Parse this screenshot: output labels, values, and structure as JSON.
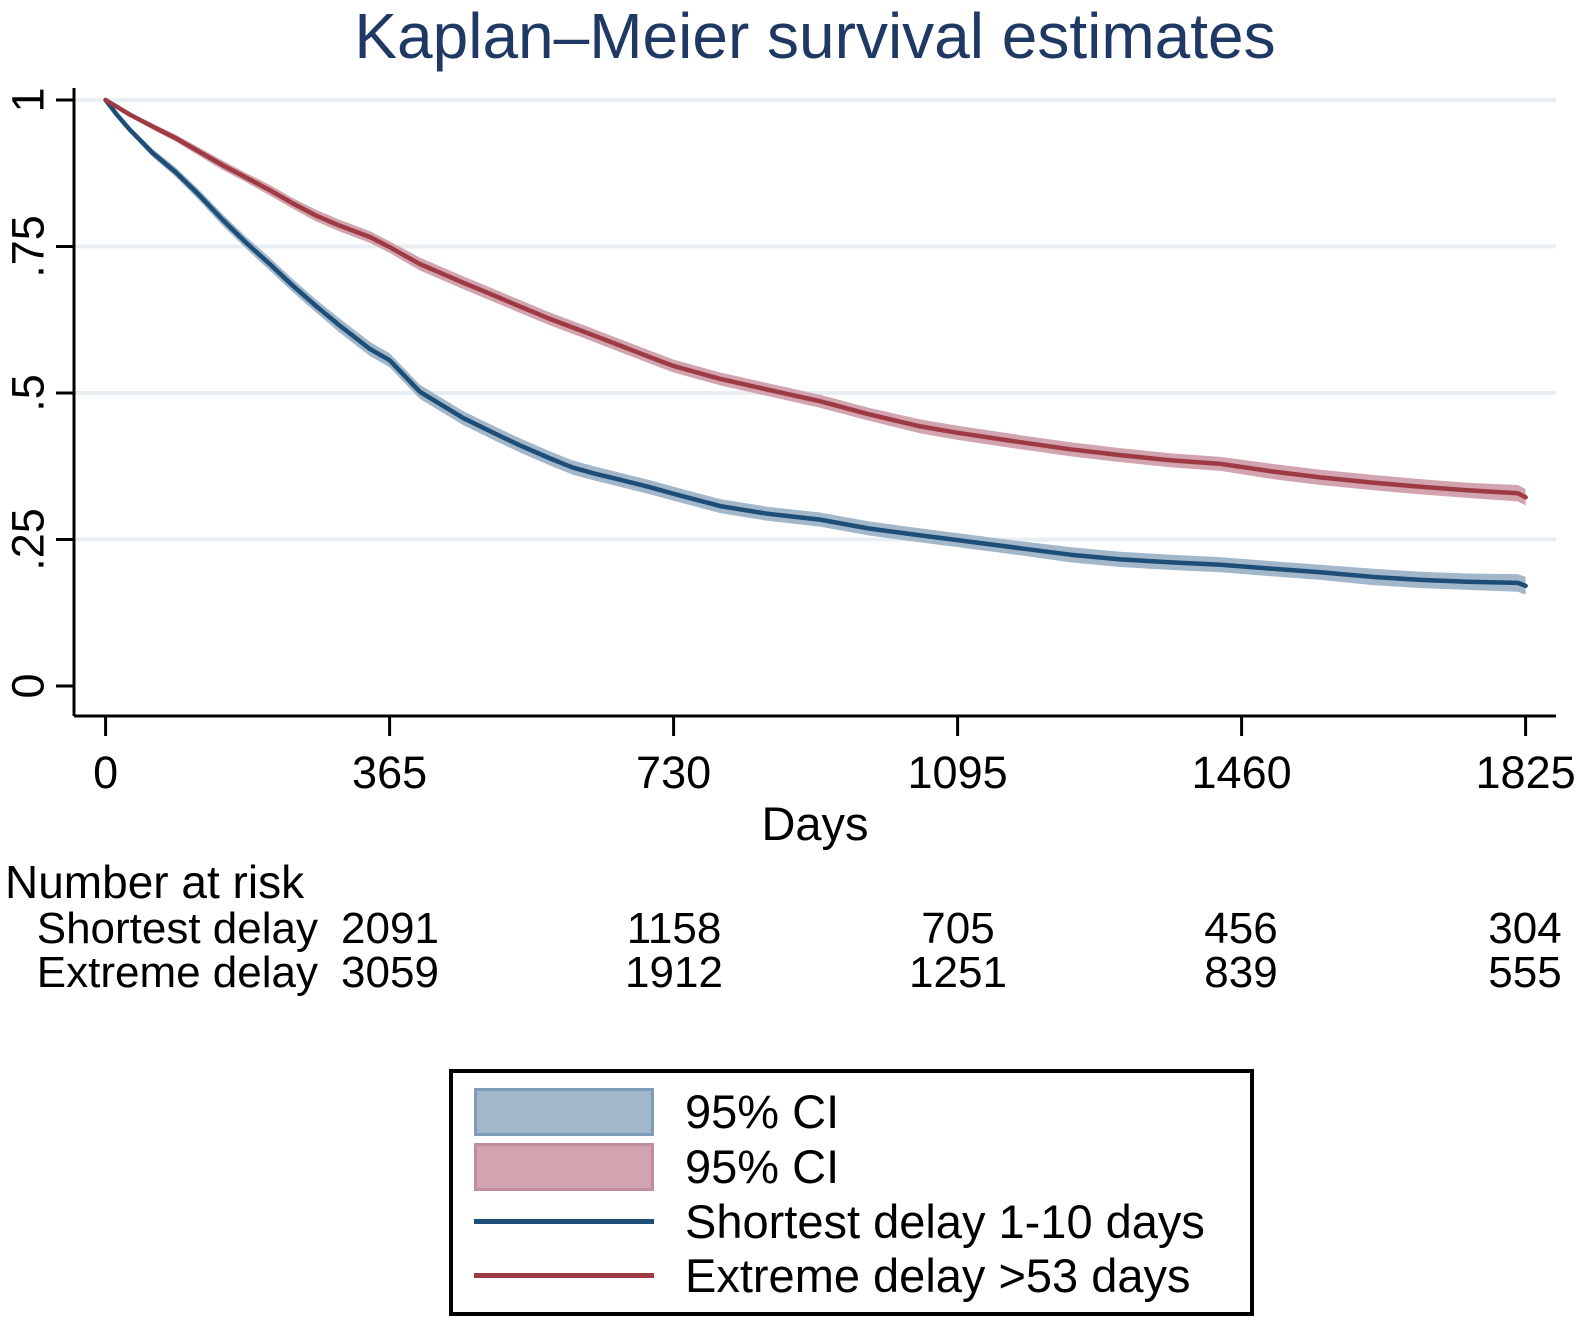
{
  "chart_data": {
    "type": "line",
    "subtype": "kaplan-meier-survival",
    "title": "Kaplan–Meier survival estimates",
    "xlabel": "Days",
    "ylabel": "",
    "xlim": [
      0,
      1825
    ],
    "ylim": [
      0,
      1
    ],
    "x_ticks": [
      0,
      365,
      730,
      1095,
      1460,
      1825
    ],
    "y_ticks": [
      {
        "value": 0,
        "label": "0"
      },
      {
        "value": 0.25,
        "label": ".25"
      },
      {
        "value": 0.5,
        "label": ".5"
      },
      {
        "value": 0.75,
        "label": ".75"
      },
      {
        "value": 1,
        "label": "1"
      }
    ],
    "grid": "horizontal",
    "gridline_color": "#e8eef1",
    "axis_color": "#000000",
    "title_color": "#1f3864",
    "series": [
      {
        "name": "Shortest delay 1-10 days",
        "line_color": "#1d4e77",
        "band_color": "#a2b7ca",
        "band_label": "95% CI",
        "points": [
          [
            0,
            1.0,
            0.001
          ],
          [
            15,
            0.974,
            0.004
          ],
          [
            30,
            0.951,
            0.005
          ],
          [
            60,
            0.91,
            0.007
          ],
          [
            90,
            0.877,
            0.008
          ],
          [
            120,
            0.838,
            0.009
          ],
          [
            150,
            0.796,
            0.01
          ],
          [
            180,
            0.757,
            0.01
          ],
          [
            211,
            0.72,
            0.011
          ],
          [
            240,
            0.684,
            0.011
          ],
          [
            270,
            0.649,
            0.011
          ],
          [
            300,
            0.616,
            0.012
          ],
          [
            340,
            0.575,
            0.012
          ],
          [
            365,
            0.556,
            0.012
          ],
          [
            404,
            0.502,
            0.012
          ],
          [
            460,
            0.457,
            0.012
          ],
          [
            500,
            0.431,
            0.012
          ],
          [
            532,
            0.411,
            0.012
          ],
          [
            570,
            0.389,
            0.012
          ],
          [
            600,
            0.373,
            0.012
          ],
          [
            630,
            0.362,
            0.012
          ],
          [
            661,
            0.352,
            0.012
          ],
          [
            700,
            0.339,
            0.012
          ],
          [
            730,
            0.328,
            0.012
          ],
          [
            790,
            0.307,
            0.012
          ],
          [
            850,
            0.294,
            0.012
          ],
          [
            918,
            0.284,
            0.012
          ],
          [
            980,
            0.269,
            0.012
          ],
          [
            1047,
            0.257,
            0.012
          ],
          [
            1095,
            0.249,
            0.012
          ],
          [
            1176,
            0.235,
            0.012
          ],
          [
            1240,
            0.224,
            0.013
          ],
          [
            1304,
            0.216,
            0.013
          ],
          [
            1370,
            0.211,
            0.013
          ],
          [
            1433,
            0.207,
            0.013
          ],
          [
            1500,
            0.2,
            0.013
          ],
          [
            1561,
            0.194,
            0.013
          ],
          [
            1630,
            0.186,
            0.014
          ],
          [
            1690,
            0.181,
            0.014
          ],
          [
            1750,
            0.178,
            0.014
          ],
          [
            1815,
            0.176,
            0.015
          ],
          [
            1825,
            0.171,
            0.015
          ]
        ]
      },
      {
        "name": "Extreme delay >53 days",
        "line_color": "#9d3a43",
        "band_color": "#d2a4af",
        "band_label": "95% CI",
        "points": [
          [
            0,
            1.0,
            0.001
          ],
          [
            15,
            0.988,
            0.002
          ],
          [
            30,
            0.976,
            0.003
          ],
          [
            60,
            0.955,
            0.005
          ],
          [
            90,
            0.935,
            0.006
          ],
          [
            120,
            0.912,
            0.007
          ],
          [
            150,
            0.889,
            0.008
          ],
          [
            180,
            0.868,
            0.008
          ],
          [
            211,
            0.846,
            0.009
          ],
          [
            240,
            0.824,
            0.009
          ],
          [
            270,
            0.803,
            0.01
          ],
          [
            300,
            0.786,
            0.01
          ],
          [
            340,
            0.766,
            0.01
          ],
          [
            365,
            0.749,
            0.01
          ],
          [
            404,
            0.72,
            0.011
          ],
          [
            460,
            0.688,
            0.011
          ],
          [
            500,
            0.666,
            0.011
          ],
          [
            532,
            0.648,
            0.011
          ],
          [
            570,
            0.627,
            0.011
          ],
          [
            600,
            0.612,
            0.011
          ],
          [
            630,
            0.597,
            0.011
          ],
          [
            661,
            0.581,
            0.011
          ],
          [
            700,
            0.561,
            0.011
          ],
          [
            730,
            0.546,
            0.011
          ],
          [
            790,
            0.524,
            0.011
          ],
          [
            850,
            0.506,
            0.011
          ],
          [
            918,
            0.486,
            0.011
          ],
          [
            980,
            0.464,
            0.011
          ],
          [
            1047,
            0.443,
            0.012
          ],
          [
            1095,
            0.432,
            0.012
          ],
          [
            1176,
            0.416,
            0.012
          ],
          [
            1240,
            0.404,
            0.012
          ],
          [
            1304,
            0.394,
            0.012
          ],
          [
            1370,
            0.385,
            0.012
          ],
          [
            1433,
            0.379,
            0.012
          ],
          [
            1500,
            0.366,
            0.013
          ],
          [
            1561,
            0.356,
            0.013
          ],
          [
            1630,
            0.347,
            0.013
          ],
          [
            1690,
            0.34,
            0.013
          ],
          [
            1750,
            0.334,
            0.013
          ],
          [
            1815,
            0.329,
            0.014
          ],
          [
            1825,
            0.322,
            0.014
          ]
        ]
      }
    ],
    "legend_position": "bottom-center"
  },
  "risk_table": {
    "heading": "Number at risk",
    "rows": [
      {
        "label": "Shortest delay",
        "values": [
          "2091",
          "1158",
          "705",
          "456",
          "304"
        ]
      },
      {
        "label": "Extreme delay",
        "values": [
          "3059",
          "1912",
          "1251",
          "839",
          "555"
        ]
      }
    ]
  },
  "legend": {
    "items": [
      {
        "type": "band",
        "label": "95% CI",
        "fill": "#a2b7ca",
        "border": "#7e9bb7"
      },
      {
        "type": "band",
        "label": "95% CI",
        "fill": "#d2a4af",
        "border": "#c18f9b"
      },
      {
        "type": "line",
        "label": "Shortest delay 1-10 days",
        "color": "#1d4e77"
      },
      {
        "type": "line",
        "label": "Extreme delay >53 days",
        "color": "#9d3a43"
      }
    ]
  }
}
